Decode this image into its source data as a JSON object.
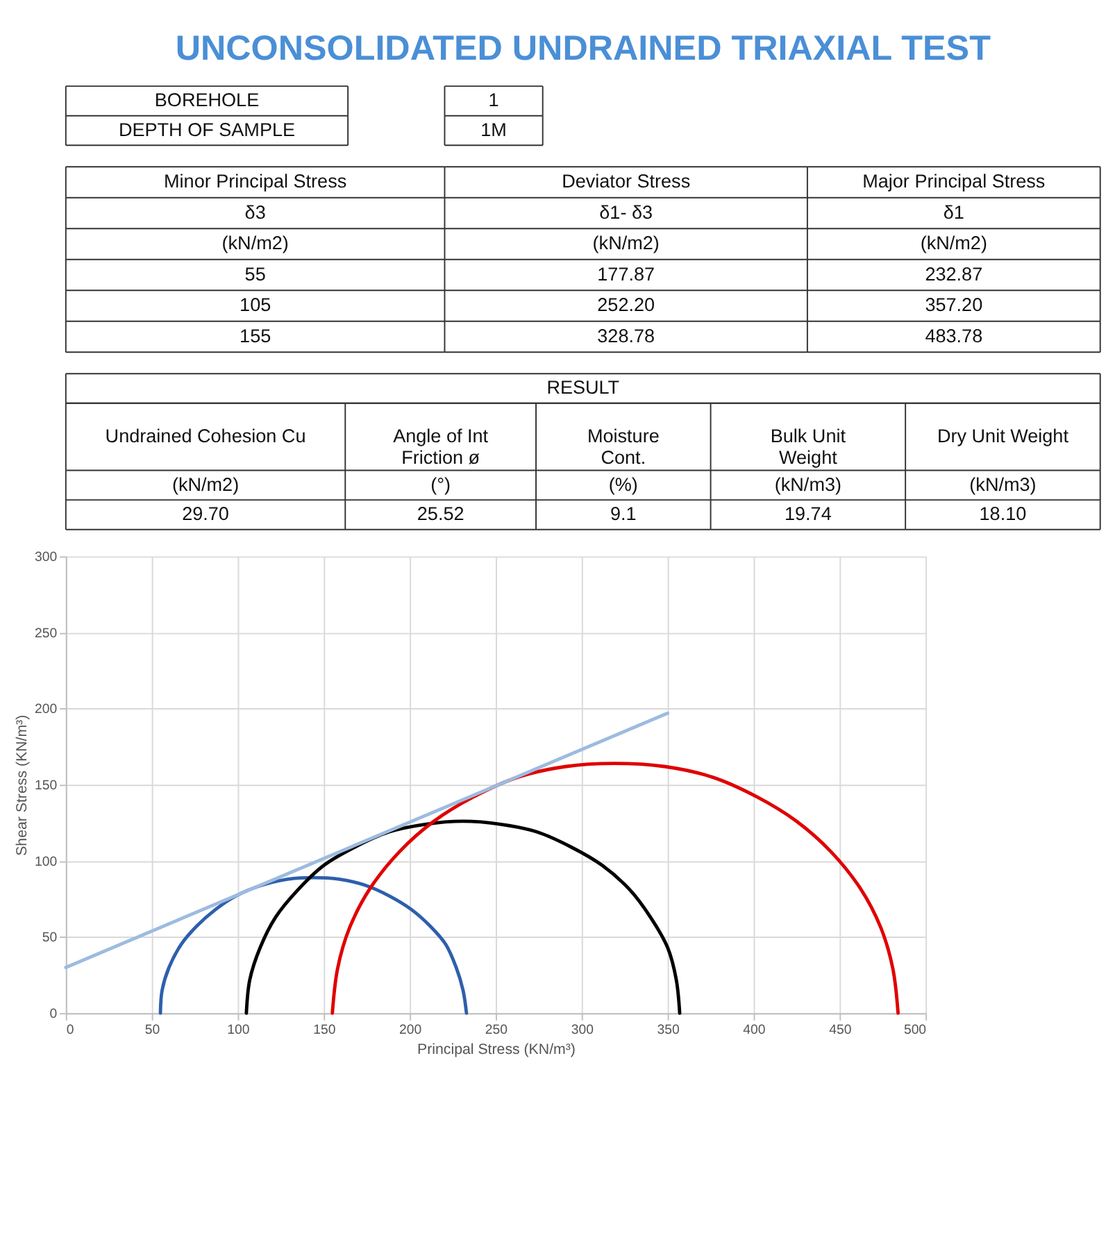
{
  "chart_data": [
    {
      "type": "other",
      "title": "UNCONSOLIDATED UNDRAINED TRIAXIAL TEST",
      "annotations": [
        "BOREHOLE",
        "1",
        "DEPTH OF SAMPLE",
        "1M"
      ]
    },
    {
      "type": "other",
      "annotations": [
        "Minor Principal Stress",
        "Deviator Stress",
        "Major Principal Stress",
        "δ3",
        "δ1- δ3",
        "δ1",
        "(kN/m2)",
        "(kN/m2)",
        "(kN/m2)",
        "55",
        "177.87",
        "232.87",
        "105",
        "252.20",
        "357.20",
        "155",
        "328.78",
        "483.78"
      ]
    },
    {
      "type": "other",
      "annotations": [
        "RESULT",
        "Undrained Cohesion Cu",
        "Angle of Int Friction ø",
        "Moisture Cont.",
        "Bulk Unit Weight",
        "Dry Unit Weight",
        "(kN/m2)",
        "(°)",
        "(%)",
        "(kN/m3)",
        "(kN/m3)",
        "29.70",
        "25.52",
        "9.1",
        "19.74",
        "18.10"
      ]
    },
    {
      "type": "line",
      "xlabel": "Principal Stress (KN/m³)",
      "ylabel": "Shear Stress (KN/m³)",
      "xlim": [
        0,
        500
      ],
      "ylim": [
        0,
        300
      ],
      "xticks": [
        0,
        50,
        100,
        150,
        200,
        250,
        300,
        350,
        400,
        450,
        500
      ],
      "yticks": [
        0,
        50,
        100,
        150,
        200,
        250,
        300
      ],
      "grid": true,
      "series": [
        {
          "color": "#2e5fac",
          "x": [
            55,
            56,
            60,
            67,
            76,
            87,
            99,
            114,
            129,
            144,
            159,
            174,
            188,
            201,
            212,
            221,
            227,
            231,
            233
          ],
          "values": [
            0,
            15,
            30,
            45,
            57,
            68,
            77,
            84,
            88,
            89,
            88,
            84,
            77,
            68,
            57,
            45,
            30,
            15,
            0
          ]
        },
        {
          "color": "#000000",
          "x": [
            105,
            107,
            113,
            122,
            135,
            150,
            168,
            188,
            209,
            231,
            253,
            274,
            294,
            312,
            328,
            340,
            350,
            355,
            357
          ],
          "values": [
            0,
            22,
            43,
            63,
            81,
            97,
            109,
            119,
            124,
            126,
            124,
            119,
            109,
            97,
            81,
            63,
            43,
            22,
            0
          ]
        },
        {
          "color": "#e00000",
          "x": [
            155,
            158,
            165,
            177,
            194,
            214,
            237,
            263,
            291,
            319,
            348,
            376,
            402,
            425,
            445,
            462,
            474,
            481,
            484
          ],
          "values": [
            0,
            29,
            56,
            82,
            106,
            126,
            142,
            155,
            162,
            164,
            162,
            155,
            142,
            126,
            106,
            82,
            56,
            29,
            0
          ]
        },
        {
          "color": "#9dbbe0",
          "x": [
            0,
            350
          ],
          "values": [
            30,
            197
          ]
        }
      ]
    }
  ]
}
